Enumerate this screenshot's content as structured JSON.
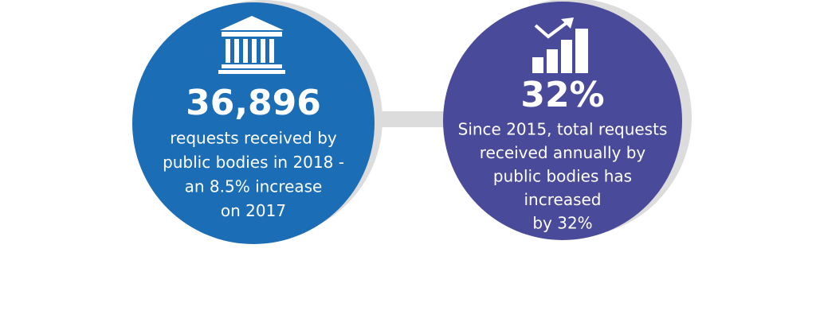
{
  "left": {
    "figure": "36,896",
    "lines": [
      "requests received by",
      "public bodies in 2018 -",
      "an 8.5% increase",
      "on 2017"
    ]
  },
  "right": {
    "figure": "32%",
    "lines": [
      "Since 2015, total requests",
      "received annually by",
      "public bodies has",
      "increased",
      "by 32%"
    ]
  }
}
